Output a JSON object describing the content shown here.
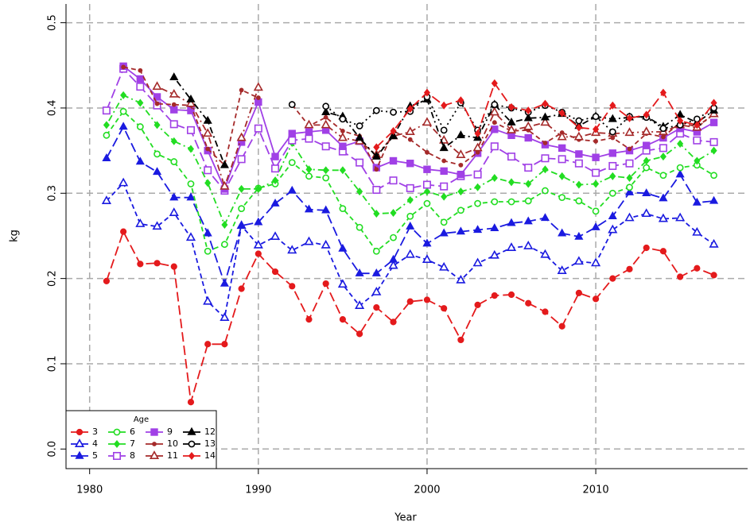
{
  "chart_data": {
    "type": "line",
    "xlabel": "Year",
    "ylabel": "kg",
    "legend_title": "Age",
    "legend_position": "bottom-left",
    "grid": true,
    "xlim": [
      1978.6,
      2019
    ],
    "ylim": [
      -0.023,
      0.522
    ],
    "xticks": [
      1980,
      1990,
      2000,
      2010
    ],
    "yticks": [
      {
        "value": 0,
        "label": "0.0"
      },
      0.1,
      0.2,
      0.3,
      0.4,
      0.5
    ],
    "x": [
      1981,
      1982,
      1983,
      1984,
      1985,
      1986,
      1987,
      1988,
      1989,
      1990,
      1991,
      1992,
      1993,
      1994,
      1995,
      1996,
      1997,
      1998,
      1999,
      2000,
      2001,
      2002,
      2003,
      2004,
      2005,
      2006,
      2007,
      2008,
      2009,
      2010,
      2011,
      2012,
      2013,
      2014,
      2015,
      2016,
      2017
    ],
    "series": [
      {
        "name": "3",
        "color": "#e41a1c",
        "marker": "circle",
        "dash": "longdash",
        "values": [
          0.197,
          0.255,
          0.217,
          0.218,
          0.214,
          0.055,
          0.123,
          0.123,
          0.188,
          0.229,
          0.208,
          0.191,
          0.152,
          0.194,
          0.152,
          0.135,
          0.166,
          0.149,
          0.173,
          0.175,
          0.165,
          0.128,
          0.169,
          0.18,
          0.181,
          0.171,
          0.161,
          0.144,
          0.183,
          0.176,
          0.2,
          0.211,
          0.236,
          0.232,
          0.202,
          0.212,
          0.204
        ]
      },
      {
        "name": "4",
        "color": "#1a1ae0",
        "marker": "open-triangle",
        "dash": "dashed",
        "values": [
          0.291,
          0.312,
          0.264,
          0.261,
          0.277,
          0.248,
          0.173,
          0.154,
          0.262,
          0.239,
          0.249,
          0.233,
          0.243,
          0.239,
          0.193,
          0.168,
          0.184,
          0.215,
          0.228,
          0.222,
          0.213,
          0.198,
          0.218,
          0.227,
          0.236,
          0.238,
          0.228,
          0.209,
          0.22,
          0.218,
          0.257,
          0.271,
          0.276,
          0.27,
          0.271,
          0.254,
          0.24
        ]
      },
      {
        "name": "5",
        "color": "#1a1ae0",
        "marker": "triangle",
        "dash": "longdash",
        "values": [
          0.341,
          0.378,
          0.337,
          0.325,
          0.295,
          0.295,
          0.253,
          0.194,
          0.262,
          0.266,
          0.288,
          0.303,
          0.281,
          0.28,
          0.235,
          0.206,
          0.206,
          0.222,
          0.261,
          0.241,
          0.253,
          0.255,
          0.257,
          0.259,
          0.265,
          0.267,
          0.271,
          0.253,
          0.249,
          0.26,
          0.273,
          0.301,
          0.3,
          0.294,
          0.322,
          0.289,
          0.291
        ]
      },
      {
        "name": "6",
        "color": "#22dd22",
        "marker": "open-circle",
        "dash": "dashed",
        "values": [
          0.368,
          0.396,
          0.378,
          0.346,
          0.337,
          0.311,
          0.232,
          0.24,
          0.282,
          0.306,
          0.311,
          0.336,
          0.32,
          0.318,
          0.282,
          0.26,
          0.232,
          0.248,
          0.273,
          0.288,
          0.266,
          0.28,
          0.288,
          0.29,
          0.29,
          0.291,
          0.303,
          0.295,
          0.291,
          0.279,
          0.3,
          0.307,
          0.33,
          0.321,
          0.33,
          0.333,
          0.321
        ]
      },
      {
        "name": "7",
        "color": "#22dd22",
        "marker": "diamond",
        "dash": "dotdash",
        "values": [
          0.38,
          0.415,
          0.406,
          0.38,
          0.361,
          0.352,
          0.312,
          0.263,
          0.305,
          0.305,
          0.315,
          0.359,
          0.328,
          0.327,
          0.327,
          0.302,
          0.276,
          0.277,
          0.292,
          0.302,
          0.296,
          0.302,
          0.307,
          0.318,
          0.313,
          0.311,
          0.328,
          0.32,
          0.31,
          0.311,
          0.32,
          0.318,
          0.338,
          0.343,
          0.358,
          0.338,
          0.35
        ]
      },
      {
        "name": "8",
        "color": "#a040e6",
        "marker": "open-square",
        "dash": "longdash",
        "values": [
          0.397,
          0.446,
          0.425,
          0.403,
          0.381,
          0.374,
          0.327,
          0.303,
          0.34,
          0.376,
          0.329,
          0.362,
          0.364,
          0.355,
          0.349,
          0.336,
          0.304,
          0.315,
          0.306,
          0.31,
          0.308,
          0.32,
          0.322,
          0.355,
          0.343,
          0.33,
          0.341,
          0.34,
          0.335,
          0.324,
          0.332,
          0.335,
          0.35,
          0.353,
          0.37,
          0.362,
          0.36
        ]
      },
      {
        "name": "9",
        "color": "#a040e6",
        "marker": "square",
        "dash": "solid",
        "values": [
          null,
          0.449,
          0.434,
          0.413,
          0.398,
          0.397,
          0.35,
          0.305,
          0.36,
          0.407,
          0.343,
          0.37,
          0.372,
          0.374,
          0.355,
          0.361,
          0.33,
          0.338,
          0.335,
          0.328,
          0.326,
          0.322,
          0.347,
          0.375,
          0.368,
          0.365,
          0.357,
          0.353,
          0.346,
          0.342,
          0.347,
          0.35,
          0.356,
          0.365,
          0.376,
          0.372,
          0.383
        ]
      },
      {
        "name": "10",
        "color": "#a52a2a",
        "marker": "dot",
        "dash": "dashed",
        "values": [
          null,
          0.448,
          0.444,
          0.405,
          0.404,
          0.403,
          0.352,
          0.333,
          0.421,
          0.412,
          null,
          0.404,
          0.379,
          0.389,
          0.373,
          0.367,
          0.328,
          0.373,
          0.363,
          0.348,
          0.338,
          0.333,
          0.348,
          0.383,
          0.373,
          0.374,
          0.359,
          0.371,
          0.363,
          0.361,
          0.365,
          0.352,
          0.37,
          0.366,
          0.383,
          0.378,
          0.393
        ]
      },
      {
        "name": "11",
        "color": "#a52a2a",
        "marker": "open-triangle",
        "dash": "dotdash",
        "values": [
          null,
          null,
          null,
          0.425,
          0.416,
          0.405,
          0.37,
          0.308,
          0.365,
          0.424,
          null,
          null,
          0.38,
          0.38,
          0.365,
          0.361,
          0.345,
          0.367,
          0.372,
          0.383,
          0.362,
          0.345,
          0.353,
          0.395,
          0.374,
          0.378,
          0.383,
          0.366,
          0.366,
          0.371,
          0.37,
          0.371,
          0.372,
          0.372,
          0.38,
          0.377,
          0.393
        ]
      },
      {
        "name": "12",
        "color": "#000000",
        "marker": "triangle",
        "dash": "dotdash",
        "values": [
          null,
          null,
          null,
          null,
          0.436,
          0.41,
          0.385,
          0.333,
          null,
          null,
          null,
          null,
          null,
          0.395,
          0.39,
          0.365,
          0.343,
          0.367,
          0.402,
          0.41,
          0.353,
          0.368,
          0.365,
          0.404,
          0.383,
          0.388,
          0.389,
          0.393,
          0.379,
          0.39,
          0.387,
          0.389,
          0.39,
          0.378,
          0.392,
          0.383,
          0.397
        ]
      },
      {
        "name": "13",
        "color": "#000000",
        "marker": "open-circle",
        "dash": "dotted",
        "values": [
          null,
          null,
          null,
          null,
          null,
          null,
          null,
          null,
          null,
          null,
          null,
          0.404,
          null,
          0.402,
          0.387,
          0.379,
          0.397,
          0.395,
          0.396,
          0.413,
          0.374,
          0.406,
          0.374,
          0.404,
          0.4,
          0.395,
          0.403,
          0.395,
          0.385,
          0.39,
          0.372,
          0.39,
          0.389,
          0.376,
          0.38,
          0.387,
          0.4
        ]
      },
      {
        "name": "14",
        "color": "#e41a1c",
        "marker": "diamond",
        "dash": "longdash",
        "values": [
          null,
          null,
          null,
          null,
          null,
          null,
          null,
          null,
          null,
          null,
          null,
          null,
          null,
          null,
          null,
          null,
          0.354,
          0.373,
          0.399,
          0.418,
          0.403,
          0.409,
          0.37,
          0.429,
          0.401,
          0.397,
          0.405,
          0.394,
          0.377,
          0.375,
          0.403,
          0.388,
          0.392,
          0.418,
          0.385,
          0.38,
          0.406
        ]
      }
    ]
  }
}
